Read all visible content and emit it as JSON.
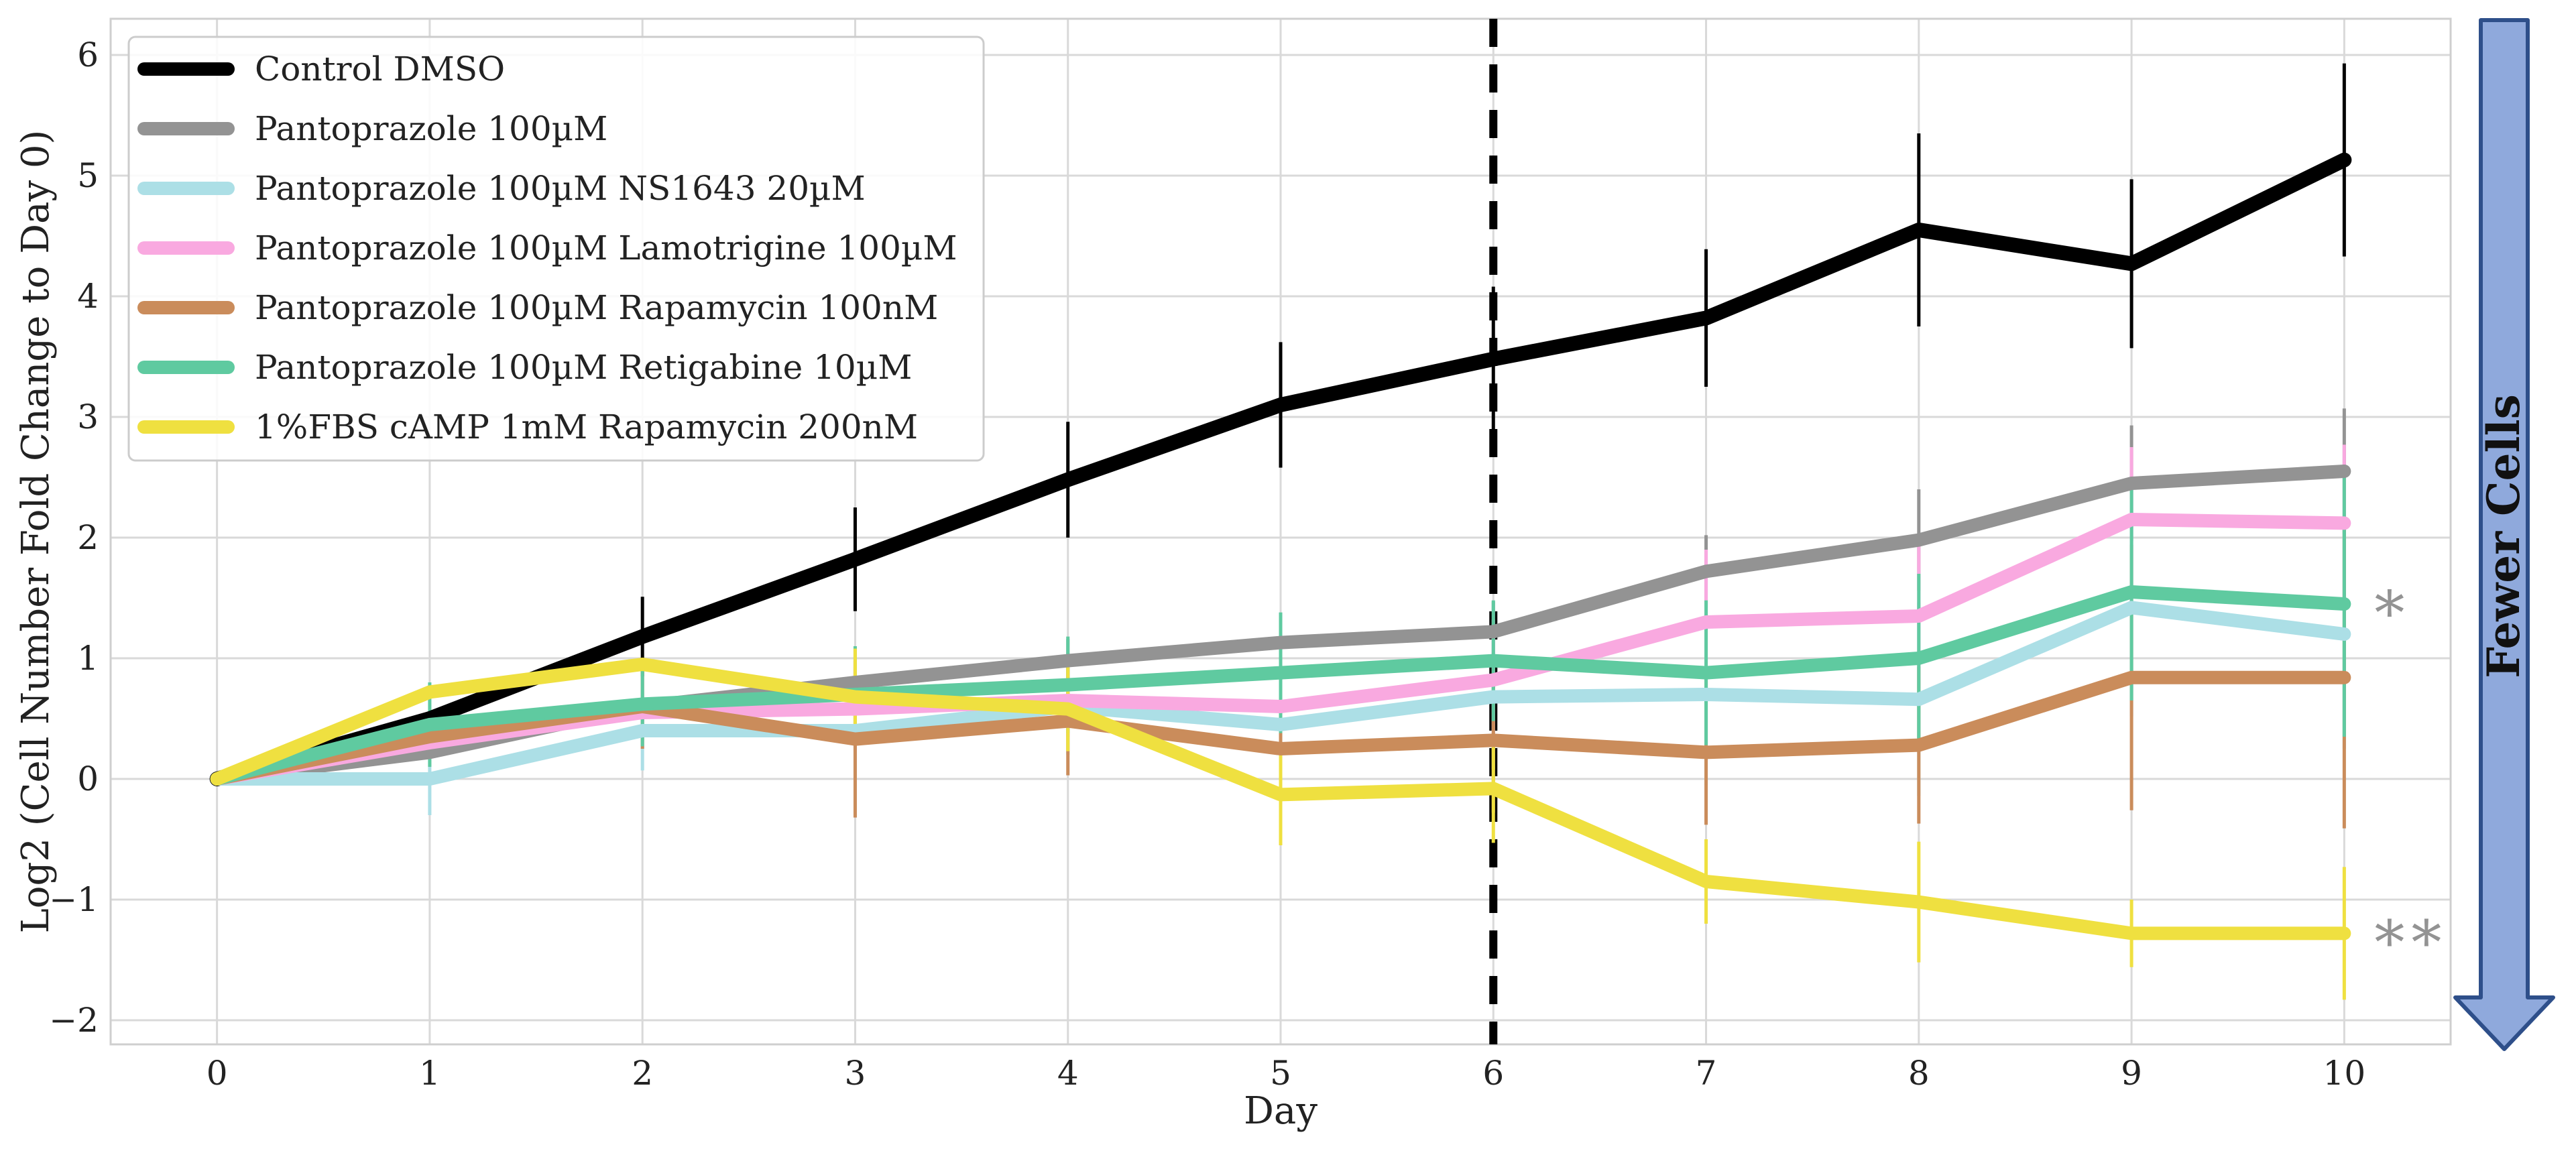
{
  "chart_data": {
    "type": "line",
    "title": "",
    "xlabel": "Day",
    "ylabel": "Log2 (Cell Number Fold Change to Day 0)",
    "x": [
      0,
      1,
      2,
      3,
      4,
      5,
      6,
      7,
      8,
      9,
      10
    ],
    "xlim": [
      -0.5,
      10.5
    ],
    "ylim": [
      -2.2,
      6.3
    ],
    "x_ticks": [
      "0",
      "1",
      "2",
      "3",
      "4",
      "5",
      "6",
      "7",
      "8",
      "9",
      "10"
    ],
    "y_ticks": [
      {
        "value": -2,
        "label": "−2"
      },
      {
        "value": -1,
        "label": "−1"
      },
      {
        "value": 0,
        "label": "0"
      },
      {
        "value": 1,
        "label": "1"
      },
      {
        "value": 2,
        "label": "2"
      },
      {
        "value": 3,
        "label": "3"
      },
      {
        "value": 4,
        "label": "4"
      },
      {
        "value": 5,
        "label": "5"
      },
      {
        "value": 6,
        "label": "6"
      }
    ],
    "grid": true,
    "legend_position": "top-left",
    "vertical_marker": {
      "x": 6,
      "style": "dashed",
      "color": "#000000"
    },
    "series": [
      {
        "name": "Control DMSO",
        "color": "#000000",
        "values": [
          0,
          0.5,
          1.18,
          1.82,
          2.48,
          3.1,
          3.48,
          3.82,
          4.55,
          4.27,
          5.13
        ],
        "errors": [
          0,
          0,
          0.33,
          0.43,
          0.48,
          0.52,
          0.6,
          0.57,
          0.8,
          0.7,
          0.8
        ]
      },
      {
        "name": "Pantoprazole 100µM",
        "color": "#939393",
        "values": [
          0,
          0.22,
          0.6,
          0.8,
          0.98,
          1.13,
          1.22,
          1.72,
          1.98,
          2.45,
          2.55
        ],
        "errors": [
          0,
          0,
          0,
          0.28,
          0.18,
          0.22,
          0.25,
          0.3,
          0.42,
          0.48,
          0.52
        ]
      },
      {
        "name": "Pantoprazole 100µM NS1643 20µM",
        "color": "#acdfe6",
        "values": [
          0,
          0,
          0.4,
          0.4,
          0.6,
          0.45,
          0.68,
          0.7,
          0.66,
          1.42,
          1.2
        ],
        "errors": [
          0,
          0.3,
          0.33,
          0.4,
          0.4,
          0.65,
          0.6,
          0.75,
          0.8,
          0.9,
          0.95
        ]
      },
      {
        "name": "Pantoprazole 100µM Lamotrigine 100µM",
        "color": "#f9a9e0",
        "values": [
          0,
          0.3,
          0.55,
          0.58,
          0.65,
          0.6,
          0.82,
          1.3,
          1.35,
          2.15,
          2.12
        ],
        "errors": [
          0,
          0,
          0.3,
          0.35,
          0.3,
          0.45,
          0.5,
          0.6,
          0.6,
          0.6,
          0.65
        ]
      },
      {
        "name": "Pantoprazole 100µM Rapamycin 100nM",
        "color": "#ca8c5b",
        "values": [
          0,
          0.35,
          0.6,
          0.33,
          0.48,
          0.25,
          0.32,
          0.22,
          0.28,
          0.84,
          0.84
        ],
        "errors": [
          0,
          0,
          0.35,
          0.65,
          0.45,
          0.6,
          0.6,
          0.6,
          0.65,
          1.1,
          1.25
        ]
      },
      {
        "name": "Pantoprazole 100µM Retigabine 10µM",
        "color": "#5fcaa0",
        "values": [
          0,
          0.45,
          0.62,
          0.7,
          0.78,
          0.88,
          0.98,
          0.88,
          1.0,
          1.55,
          1.45
        ],
        "errors": [
          0,
          0.35,
          0.35,
          0.4,
          0.4,
          0.5,
          0.5,
          0.6,
          0.7,
          0.9,
          1.1
        ]
      },
      {
        "name": "1%FBS cAMP 1mM Rapamycin 200nM",
        "color": "#efe040",
        "values": [
          0,
          0.72,
          0.95,
          0.68,
          0.58,
          -0.13,
          -0.08,
          -0.85,
          -1.02,
          -1.28,
          -1.28
        ],
        "errors": [
          0,
          0,
          0,
          0.4,
          0.35,
          0.42,
          0.45,
          0.35,
          0.5,
          0.28,
          0.55
        ]
      }
    ],
    "annotations": [
      {
        "text": "*",
        "series": "Pantoprazole 100µM Retigabine 10µM",
        "x": 10,
        "y": 1.45,
        "color": "#939393"
      },
      {
        "text": "**",
        "series": "1%FBS cAMP 1mM Rapamycin 200nM",
        "x": 10,
        "y": -1.28,
        "color": "#939393"
      }
    ],
    "side_arrow": {
      "label": "Fewer Cells",
      "direction": "down",
      "fill": "#8fa9dc",
      "stroke": "#2e4f8a"
    }
  }
}
